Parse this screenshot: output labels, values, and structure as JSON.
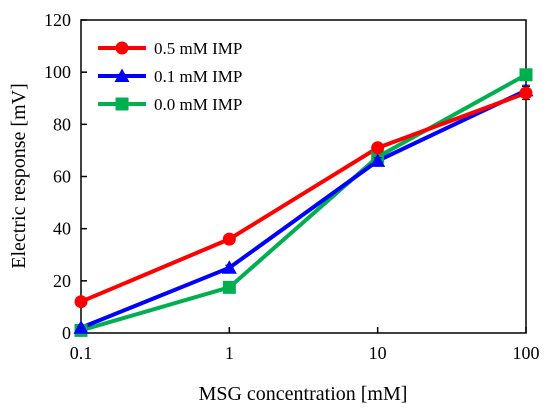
{
  "chart_data": {
    "type": "line",
    "x_scale": "log",
    "xlabel": "MSG concentration [mM]",
    "ylabel": "Electric response [mV]",
    "x_ticks": [
      "0.1",
      "1",
      "10",
      "100"
    ],
    "x": [
      0.1,
      1,
      10,
      100
    ],
    "xlim": [
      0.1,
      100
    ],
    "ylim": [
      0,
      120
    ],
    "y_ticks": [
      "0",
      "20",
      "40",
      "60",
      "80",
      "100",
      "120"
    ],
    "grid": false,
    "legend_position": "top-left",
    "series": [
      {
        "name": "0.5 mM IMP",
        "color": "#ff0000",
        "marker": "circle",
        "values": [
          12,
          36,
          71,
          92
        ],
        "errors": [
          0.8,
          1.5,
          1.2,
          2.5
        ]
      },
      {
        "name": "0.1 mM IMP",
        "color": "#0000ff",
        "marker": "triangle",
        "values": [
          2,
          25,
          66,
          93
        ],
        "errors": [
          0.5,
          1.0,
          1.2,
          2.0
        ]
      },
      {
        "name": "0.0 mM IMP",
        "color": "#00b050",
        "marker": "square",
        "values": [
          1,
          17.5,
          67.5,
          99
        ],
        "errors": [
          0.5,
          1.0,
          1.0,
          1.0
        ]
      }
    ]
  }
}
